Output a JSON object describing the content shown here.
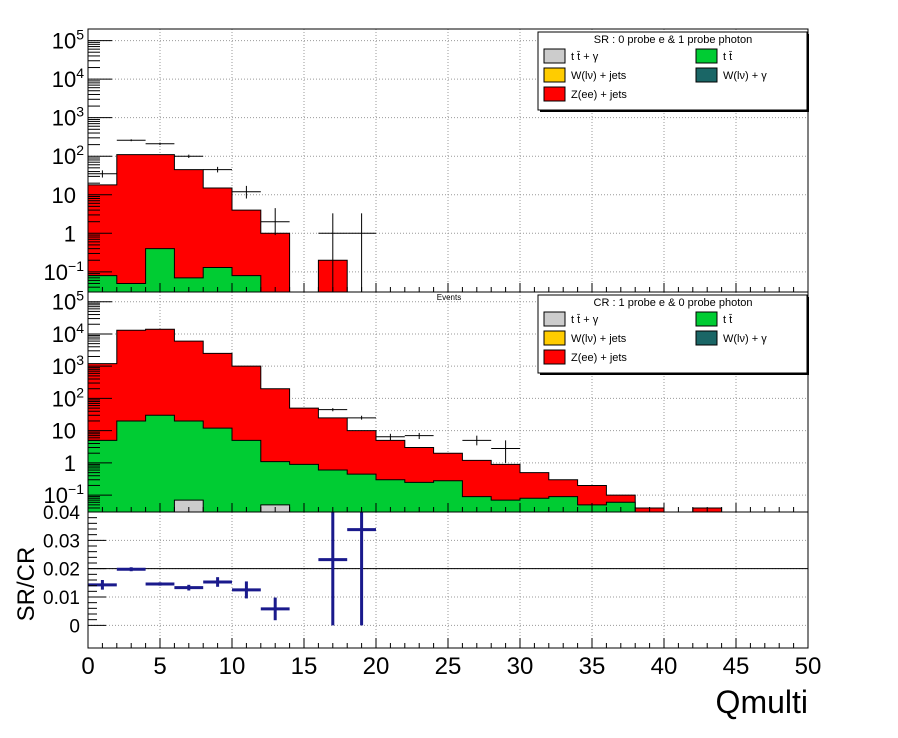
{
  "chart_data": [
    {
      "panel": "top",
      "type": "area",
      "scale": "log",
      "ylim": [
        0.03,
        200000
      ],
      "xlim": [
        0,
        50
      ],
      "bin_width": 2,
      "grid": true,
      "y_ticks": [
        {
          "v": 0.1,
          "b": "10",
          "e": "−1"
        },
        {
          "v": 1,
          "b": "1",
          "e": ""
        },
        {
          "v": 10,
          "b": "10",
          "e": ""
        },
        {
          "v": 100,
          "b": "10",
          "e": "2"
        },
        {
          "v": 1000,
          "b": "10",
          "e": "3"
        },
        {
          "v": 10000,
          "b": "10",
          "e": "4"
        },
        {
          "v": 100000,
          "b": "10",
          "e": "5"
        }
      ],
      "legend": {
        "title": "SR : 0 probe e & 1 probe photon",
        "placement": "top-right",
        "items": [
          {
            "key": "ttgamma",
            "label": "t t̄ + γ",
            "color": "#cccccc"
          },
          {
            "key": "tt",
            "label": "t t̄",
            "color": "#00cc33"
          },
          {
            "key": "wjets",
            "label": "W(lν) + jets",
            "color": "#ffcc00"
          },
          {
            "key": "wgamma",
            "label": "W(lν) + γ",
            "color": "#1a6666"
          },
          {
            "key": "zee",
            "label": "Z(ee) + jets",
            "color": "#ff0000"
          }
        ]
      },
      "series": [
        {
          "name": "Z(ee) + jets",
          "color": "#ff0000",
          "values": [
            18,
            110,
            110,
            45,
            15,
            4,
            1,
            0.03,
            0.2
          ]
        },
        {
          "name": "t t̄",
          "color": "#00cc33",
          "values": [
            0.08,
            0.05,
            0.4,
            0.07,
            0.13,
            0.08
          ]
        }
      ],
      "data_points": [
        {
          "x": 1,
          "y": 35,
          "err": [
            28,
            43
          ]
        },
        {
          "x": 3,
          "y": 260,
          "err": [
            245,
            275
          ]
        },
        {
          "x": 5,
          "y": 210,
          "err": [
            195,
            225
          ]
        },
        {
          "x": 7,
          "y": 100,
          "err": [
            90,
            110
          ]
        },
        {
          "x": 9,
          "y": 45,
          "err": [
            38,
            53
          ]
        },
        {
          "x": 11,
          "y": 12,
          "err": [
            8,
            17
          ]
        },
        {
          "x": 13,
          "y": 2,
          "err": [
            0.9,
            4.5
          ]
        },
        {
          "x": 17,
          "y": 1,
          "err": [
            0.03,
            3.3
          ]
        },
        {
          "x": 19,
          "y": 1,
          "err": [
            0.03,
            3.3
          ]
        }
      ]
    },
    {
      "panel": "middle",
      "type": "area",
      "scale": "log",
      "ylim": [
        0.03,
        200000
      ],
      "xlim": [
        0,
        50
      ],
      "bin_width": 2,
      "grid": true,
      "center_label": "Events",
      "y_ticks": [
        {
          "v": 0.1,
          "b": "10",
          "e": "−1"
        },
        {
          "v": 1,
          "b": "1",
          "e": ""
        },
        {
          "v": 10,
          "b": "10",
          "e": ""
        },
        {
          "v": 100,
          "b": "10",
          "e": "2"
        },
        {
          "v": 1000,
          "b": "10",
          "e": "3"
        },
        {
          "v": 10000,
          "b": "10",
          "e": "4"
        },
        {
          "v": 100000,
          "b": "10",
          "e": "5"
        }
      ],
      "legend": {
        "title": "CR : 1 probe e & 0 probe photon",
        "placement": "top-right",
        "items": [
          {
            "key": "ttgamma",
            "label": "t t̄ + γ",
            "color": "#cccccc"
          },
          {
            "key": "tt",
            "label": "t t̄",
            "color": "#00cc33"
          },
          {
            "key": "wjets",
            "label": "W(lν) + jets",
            "color": "#ffcc00"
          },
          {
            "key": "wgamma",
            "label": "W(lν) + γ",
            "color": "#1a6666"
          },
          {
            "key": "zee",
            "label": "Z(ee) + jets",
            "color": "#ff0000"
          }
        ]
      },
      "series": [
        {
          "name": "Z(ee) + jets",
          "color": "#ff0000",
          "values": [
            1200,
            13000,
            14000,
            6000,
            2500,
            1000,
            200,
            50,
            25,
            10,
            5,
            3,
            2,
            1.2,
            0.9,
            0.5,
            0.3,
            0.2,
            0.1,
            0.04,
            0.03,
            0.04
          ]
        },
        {
          "name": "t t̄",
          "color": "#00cc33",
          "values": [
            5,
            20,
            30,
            20,
            12,
            5,
            1.1,
            0.9,
            0.6,
            0.45,
            0.3,
            0.25,
            0.28,
            0.09,
            0.07,
            0.08,
            0.09,
            0.05,
            0.06
          ]
        },
        {
          "name": "t t̄ + γ",
          "color": "#cccccc",
          "values": [
            0,
            0,
            0,
            0.07,
            0,
            0,
            0.05
          ]
        }
      ],
      "data_points": [
        {
          "x": 17,
          "y": 45,
          "err": [
            40,
            50
          ]
        },
        {
          "x": 19,
          "y": 25,
          "err": [
            22,
            29
          ]
        },
        {
          "x": 21,
          "y": 6.5,
          "err": [
            5,
            8
          ]
        },
        {
          "x": 23,
          "y": 7,
          "err": [
            5.5,
            8.5
          ]
        },
        {
          "x": 27,
          "y": 5,
          "err": [
            3.5,
            7
          ]
        },
        {
          "x": 29,
          "y": 2.8,
          "err": [
            1,
            5
          ]
        }
      ]
    },
    {
      "panel": "bottom",
      "type": "scatter",
      "ylabel": "SR/CR",
      "xlabel": "Qmulti",
      "ylim": [
        -0.008,
        0.04
      ],
      "xlim": [
        0,
        50
      ],
      "grid": true,
      "ref_line": 0.02,
      "y_ticks": [
        0,
        0.01,
        0.02,
        0.03,
        0.04
      ],
      "y_tick_labels": [
        "0",
        "0.01",
        "0.02",
        "0.03",
        "0.04"
      ],
      "x_ticks": [
        0,
        5,
        10,
        15,
        20,
        25,
        30,
        35,
        40,
        45,
        50
      ],
      "x_tick_labels": [
        "0",
        "5",
        "10",
        "15",
        "20",
        "25",
        "30",
        "35",
        "40",
        "45",
        "50"
      ],
      "color": "#1a1a8c",
      "points": [
        {
          "x": 1,
          "y": 0.0143,
          "err": 0.0017
        },
        {
          "x": 3,
          "y": 0.0198,
          "err": 0.0007
        },
        {
          "x": 5,
          "y": 0.0146,
          "err": 0.0006
        },
        {
          "x": 7,
          "y": 0.0133,
          "err": 0.001
        },
        {
          "x": 9,
          "y": 0.0153,
          "err": 0.0017
        },
        {
          "x": 11,
          "y": 0.0125,
          "err": 0.003
        },
        {
          "x": 13,
          "y": 0.0058,
          "err": 0.004
        },
        {
          "x": 17,
          "y": 0.0232,
          "err": 0.0232
        },
        {
          "x": 19,
          "y": 0.0338,
          "err": 0.0338
        }
      ]
    }
  ]
}
